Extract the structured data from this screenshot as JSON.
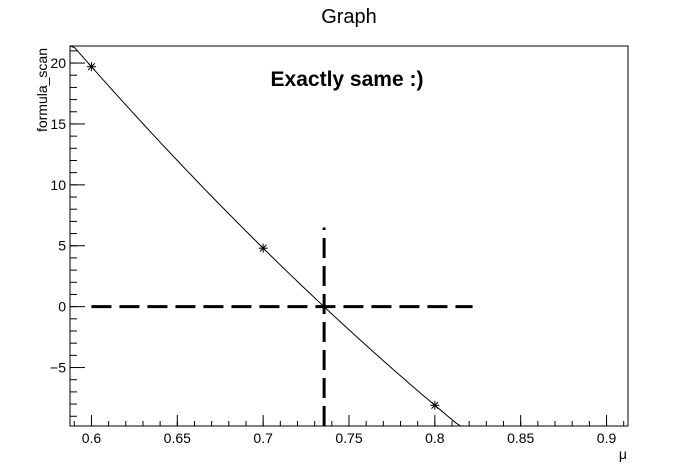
{
  "chart_data": {
    "type": "line",
    "title": "Graph",
    "xlabel": "μ",
    "ylabel": "formula_scan",
    "annotation": "Exactly same :)",
    "xlim": [
      0.5875,
      0.9125
    ],
    "ylim": [
      -9.8,
      21.4
    ],
    "xticks": [
      0.6,
      0.65,
      0.7,
      0.75,
      0.8,
      0.85,
      0.9
    ],
    "xtick_labels": [
      "0.6",
      "0.65",
      "0.7",
      "0.75",
      "0.8",
      "0.85",
      "0.9"
    ],
    "yticks": [
      -5,
      0,
      5,
      10,
      15,
      20
    ],
    "ytick_labels": [
      "−5",
      "0",
      "5",
      "10",
      "15",
      "20"
    ],
    "grid": false,
    "series": [
      {
        "x": [
          0.6,
          0.7,
          0.8
        ],
        "y": [
          19.7,
          4.8,
          -8.1
        ],
        "marker": "star",
        "line": "curve"
      }
    ],
    "guide_lines": [
      {
        "orientation": "horizontal",
        "y": 0,
        "x_from": 0.6,
        "x_to": 0.822
      },
      {
        "orientation": "vertical",
        "x": 0.7355,
        "y_from": -9.8,
        "y_to": 6.5
      }
    ]
  }
}
